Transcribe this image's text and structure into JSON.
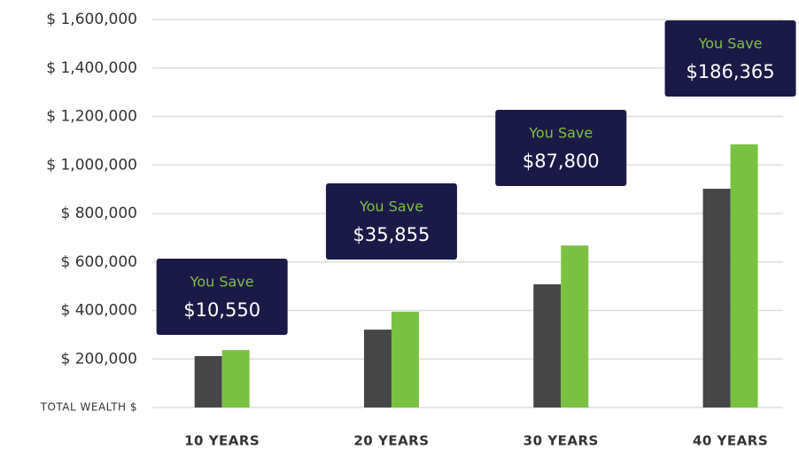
{
  "chart_data": {
    "type": "bar",
    "categories": [
      "10 YEARS",
      "20 YEARS",
      "30 YEARS",
      "40 YEARS"
    ],
    "series": [
      {
        "color": "#464646",
        "values": [
          212000,
          321000,
          508000,
          902000
        ]
      },
      {
        "color": "#7ac143",
        "values": [
          237000,
          395000,
          668000,
          1085000
        ]
      }
    ],
    "ylim": [
      0,
      1600000
    ],
    "yticks": [
      {
        "value": 0,
        "label": "TOTAL WEALTH $"
      },
      {
        "value": 200000,
        "label": "$ 200,000"
      },
      {
        "value": 400000,
        "label": "$ 400,000"
      },
      {
        "value": 600000,
        "label": "$ 600,000"
      },
      {
        "value": 800000,
        "label": "$ 800,000"
      },
      {
        "value": 1000000,
        "label": "$ 1,000,000"
      },
      {
        "value": 1200000,
        "label": "$ 1,200,000"
      },
      {
        "value": 1400000,
        "label": "$ 1,400,000"
      },
      {
        "value": 1600000,
        "label": "$ 1,600,000"
      }
    ],
    "grid": true,
    "annotations": [
      {
        "title": "You Save",
        "text": "$10,550"
      },
      {
        "title": "You Save",
        "text": "$35,855"
      },
      {
        "title": "You Save",
        "text": "$87,800"
      },
      {
        "title": "You Save",
        "text": "$186,365"
      }
    ]
  }
}
